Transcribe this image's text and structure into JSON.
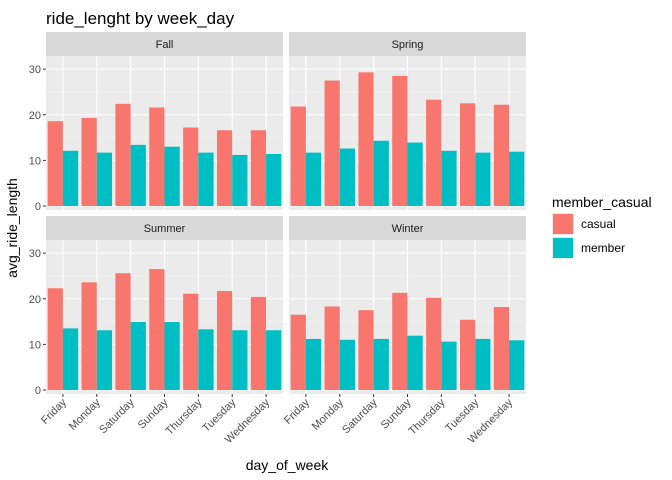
{
  "chart_data": {
    "type": "bar",
    "title": "ride_lenght by week_day",
    "xlabel": "day_of_week",
    "ylabel": "avg_ride_length",
    "categories": [
      "Friday",
      "Monday",
      "Saturday",
      "Sunday",
      "Thursday",
      "Tuesday",
      "Wednesday"
    ],
    "ylim": [
      0,
      32
    ],
    "yticks": [
      0,
      10,
      20,
      30
    ],
    "grid": true,
    "legend": {
      "title": "member_casual",
      "position": "right",
      "entries": [
        "casual",
        "member"
      ]
    },
    "colors": {
      "casual": "#F8766D",
      "member": "#00BFC4"
    },
    "panels": [
      {
        "name": "Fall",
        "series": [
          {
            "name": "casual",
            "values": [
              18.6,
              19.3,
              22.4,
              21.6,
              17.2,
              16.6,
              16.6
            ]
          },
          {
            "name": "member",
            "values": [
              12.1,
              11.7,
              13.4,
              13.0,
              11.7,
              11.2,
              11.4
            ]
          }
        ]
      },
      {
        "name": "Spring",
        "series": [
          {
            "name": "casual",
            "values": [
              21.8,
              27.5,
              29.3,
              28.5,
              23.3,
              22.5,
              22.2
            ]
          },
          {
            "name": "member",
            "values": [
              11.7,
              12.6,
              14.3,
              13.9,
              12.1,
              11.7,
              11.9
            ]
          }
        ]
      },
      {
        "name": "Summer",
        "series": [
          {
            "name": "casual",
            "values": [
              22.3,
              23.6,
              25.6,
              26.5,
              21.1,
              21.7,
              20.4
            ]
          },
          {
            "name": "member",
            "values": [
              13.5,
              13.1,
              14.9,
              14.9,
              13.3,
              13.1,
              13.1
            ]
          }
        ]
      },
      {
        "name": "Winter",
        "series": [
          {
            "name": "casual",
            "values": [
              16.5,
              18.3,
              17.5,
              21.3,
              20.2,
              15.4,
              18.2
            ]
          },
          {
            "name": "member",
            "values": [
              11.2,
              11.0,
              11.2,
              11.9,
              10.6,
              11.2,
              10.9
            ]
          }
        ]
      }
    ]
  }
}
